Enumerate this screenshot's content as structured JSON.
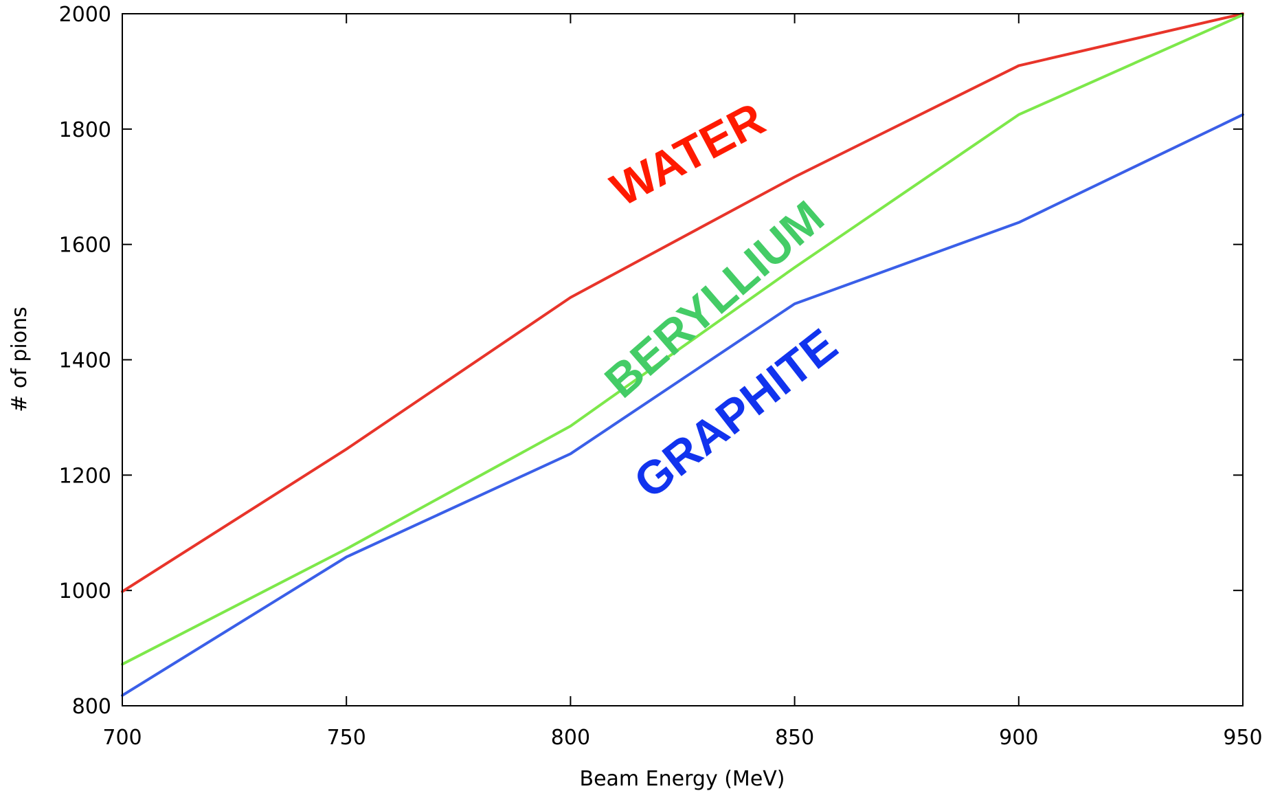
{
  "chart_data": {
    "type": "line",
    "xlabel": "Beam Energy (MeV)",
    "ylabel": "# of pions",
    "xlim": [
      700,
      950
    ],
    "ylim": [
      800,
      2000
    ],
    "xticks": [
      700,
      750,
      800,
      850,
      900,
      950
    ],
    "yticks": [
      800,
      1000,
      1200,
      1400,
      1600,
      1800,
      2000
    ],
    "grid": false,
    "x": [
      700,
      750,
      800,
      850,
      900,
      950
    ],
    "series": [
      {
        "name": "WATER",
        "color": "#e8342a",
        "values": [
          998,
          1245,
          1508,
          1717,
          1910,
          2000
        ]
      },
      {
        "name": "BERYLLIUM",
        "color": "#7de84a",
        "values": [
          872,
          1072,
          1285,
          1560,
          1825,
          1998
        ]
      },
      {
        "name": "GRAPHITE",
        "color": "#3a5fe8",
        "values": [
          818,
          1058,
          1237,
          1497,
          1638,
          1825
        ]
      }
    ],
    "annotations": [
      {
        "text": "WATER",
        "color": "#ff1a00"
      },
      {
        "text": "BERYLLIUM",
        "color": "#44cc66"
      },
      {
        "text": "GRAPHITE",
        "color": "#1133ee"
      }
    ]
  }
}
